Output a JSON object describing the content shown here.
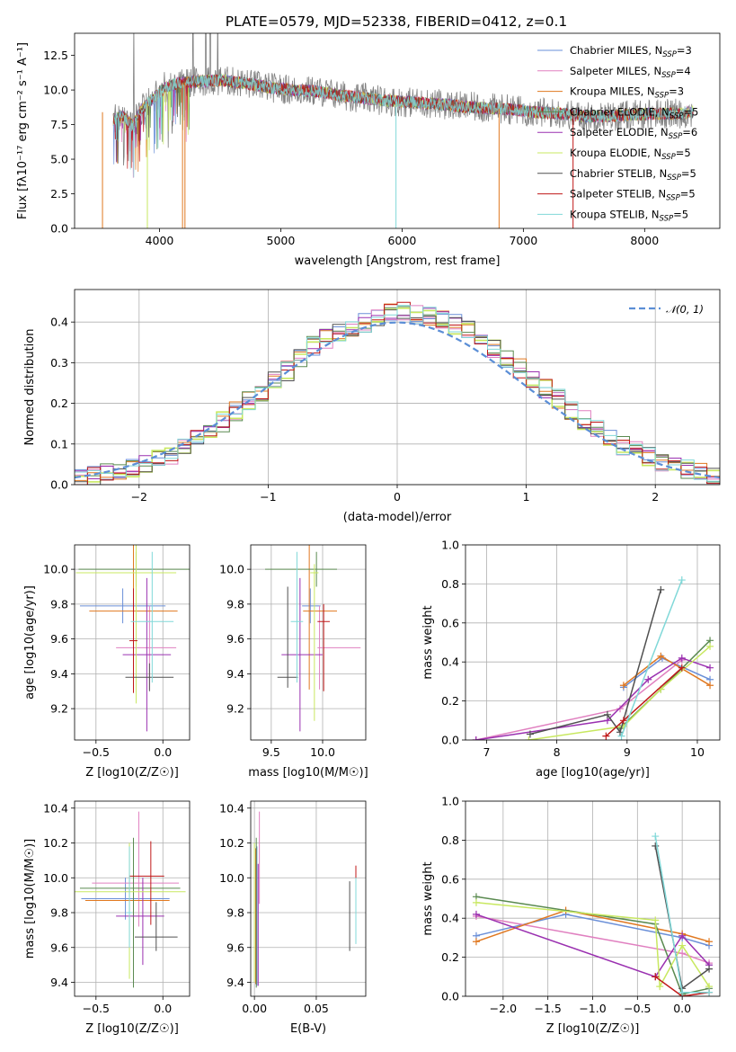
{
  "title": "PLATE=0579, MJD=52338, FIBERID=0412, z=0.1",
  "models": [
    {
      "name": "Chabrier MILES, N_SSP=3",
      "label_main": "Chabrier MILES, N",
      "label_sub": "SSP",
      "label_tail": "=3",
      "color": "#6a8fd8"
    },
    {
      "name": "Salpeter MILES, N_SSP=4",
      "label_main": "Salpeter MILES, N",
      "label_sub": "SSP",
      "label_tail": "=4",
      "color": "#e080c0"
    },
    {
      "name": "Kroupa MILES, N_SSP=3",
      "label_main": "Kroupa MILES, N",
      "label_sub": "SSP",
      "label_tail": "=3",
      "color": "#e07820"
    },
    {
      "name": "Chabrier ELODIE, N_SSP=5",
      "label_main": "Chabrier ELODIE, N",
      "label_sub": "SSP",
      "label_tail": "=5",
      "color": "#5a8a50"
    },
    {
      "name": "Salpeter ELODIE, N_SSP=6",
      "label_main": "Salpeter ELODIE, N",
      "label_sub": "SSP",
      "label_tail": "=6",
      "color": "#9a30b0"
    },
    {
      "name": "Kroupa ELODIE, N_SSP=5",
      "label_main": "Kroupa ELODIE, N",
      "label_sub": "SSP",
      "label_tail": "=5",
      "color": "#c8e860"
    },
    {
      "name": "Chabrier STELIB, N_SSP=5",
      "label_main": "Chabrier STELIB, N",
      "label_sub": "SSP",
      "label_tail": "=5",
      "color": "#505050"
    },
    {
      "name": "Salpeter STELIB, N_SSP=5",
      "label_main": "Salpeter STELIB, N",
      "label_sub": "SSP",
      "label_tail": "=5",
      "color": "#c01818"
    },
    {
      "name": "Kroupa STELIB, N_SSP=5",
      "label_main": "Kroupa STELIB, N",
      "label_sub": "SSP",
      "label_tail": "=5",
      "color": "#80d8d8"
    }
  ],
  "data_spectrum_color": "#808080",
  "chart_data": [
    {
      "id": "spectrum",
      "type": "line",
      "xlabel": "wavelength [Angstrom, rest frame]",
      "ylabel": "Flux [fλ10⁻¹⁷ erg cm⁻² s⁻¹ A⁻¹]",
      "xlim": [
        3300,
        8620
      ],
      "ylim": [
        0,
        14.1
      ],
      "xticks": [
        4000,
        5000,
        6000,
        7000,
        8000
      ],
      "yticks": [
        0.0,
        2.5,
        5.0,
        7.5,
        10.0,
        12.5
      ],
      "continuum": {
        "x": [
          3620,
          3700,
          3780,
          3850,
          3950,
          4050,
          4150,
          4300,
          4500,
          4700,
          4900,
          5100,
          5300,
          5500,
          5700,
          5900,
          6100,
          6300,
          6500,
          6700,
          6900,
          7100,
          7300,
          7500,
          7700,
          7900,
          8100,
          8300,
          8400
        ],
        "y": [
          7.9,
          8.1,
          7.4,
          8.6,
          9.4,
          10.2,
          10.5,
          10.6,
          10.7,
          10.5,
          10.2,
          10.0,
          9.9,
          9.6,
          9.4,
          9.2,
          9.1,
          9.0,
          8.8,
          8.7,
          8.6,
          8.4,
          8.3,
          8.1,
          8.1,
          8.2,
          8.3,
          8.3,
          8.4
        ]
      },
      "grid": false,
      "legend_position": "upper right"
    },
    {
      "id": "residuals",
      "type": "histogram",
      "xlabel": "(data-model)/error",
      "ylabel": "Normed distribution",
      "xlim": [
        -2.5,
        2.5
      ],
      "ylim": [
        0,
        0.48
      ],
      "xticks": [
        -2,
        -1,
        0,
        1,
        2
      ],
      "yticks": [
        0.0,
        0.1,
        0.2,
        0.3,
        0.4
      ],
      "bin_edges": [
        -2.5,
        -2.4,
        -2.3,
        -2.2,
        -2.1,
        -2.0,
        -1.9,
        -1.8,
        -1.7,
        -1.6,
        -1.5,
        -1.4,
        -1.3,
        -1.2,
        -1.1,
        -1.0,
        -0.9,
        -0.8,
        -0.7,
        -0.6,
        -0.5,
        -0.4,
        -0.3,
        -0.2,
        -0.1,
        0.0,
        0.1,
        0.2,
        0.3,
        0.4,
        0.5,
        0.6,
        0.7,
        0.8,
        0.9,
        1.0,
        1.1,
        1.2,
        1.3,
        1.4,
        1.5,
        1.6,
        1.7,
        1.8,
        1.9,
        2.0,
        2.1,
        2.2,
        2.3,
        2.4,
        2.5
      ],
      "base_counts": [
        0.015,
        0.022,
        0.028,
        0.034,
        0.042,
        0.05,
        0.06,
        0.075,
        0.09,
        0.11,
        0.13,
        0.155,
        0.18,
        0.205,
        0.23,
        0.255,
        0.28,
        0.31,
        0.34,
        0.36,
        0.375,
        0.39,
        0.4,
        0.41,
        0.42,
        0.43,
        0.42,
        0.415,
        0.41,
        0.395,
        0.38,
        0.36,
        0.335,
        0.31,
        0.285,
        0.26,
        0.235,
        0.21,
        0.185,
        0.16,
        0.135,
        0.115,
        0.098,
        0.082,
        0.068,
        0.056,
        0.045,
        0.036,
        0.029,
        0.022
      ],
      "reference_curve": {
        "name": "𝒩(0, 1)",
        "mu": 0,
        "sigma": 1,
        "color": "#5b8ed6"
      },
      "grid": true,
      "legend_position": "upper right"
    },
    {
      "id": "age-vs-z",
      "type": "errorbar",
      "xlabel": "Z [log10(Z/Z☉)]",
      "ylabel": "age [log10(age/yr)]",
      "xlim": [
        -0.66,
        0.2
      ],
      "ylim": [
        9.02,
        10.14
      ],
      "xticks": [
        -0.5,
        0.0
      ],
      "yticks": [
        9.2,
        9.4,
        9.6,
        9.8,
        10.0
      ],
      "points": [
        {
          "model": 0,
          "x": -0.3,
          "xerr": [
            0.32,
            0.32
          ],
          "y": 9.79,
          "yerr": [
            0.1,
            0.1
          ]
        },
        {
          "model": 1,
          "x": -0.1,
          "xerr": [
            0.25,
            0.2
          ],
          "y": 9.55,
          "yerr": [
            0.24,
            0.24
          ]
        },
        {
          "model": 2,
          "x": -0.22,
          "xerr": [
            0.33,
            0.33
          ],
          "y": 9.76,
          "yerr": [
            0.45,
            0.45
          ]
        },
        {
          "model": 3,
          "x": -0.2,
          "xerr": [
            0.43,
            0.43
          ],
          "y": 10.0,
          "yerr": [
            0.1,
            0.1
          ]
        },
        {
          "model": 4,
          "x": -0.12,
          "xerr": [
            0.18,
            0.18
          ],
          "y": 9.51,
          "yerr": [
            0.44,
            0.44
          ]
        },
        {
          "model": 5,
          "x": -0.2,
          "xerr": [
            0.45,
            0.3
          ],
          "y": 9.98,
          "yerr": [
            0.75,
            0.25
          ]
        },
        {
          "model": 6,
          "x": -0.1,
          "xerr": [
            0.18,
            0.18
          ],
          "y": 9.38,
          "yerr": [
            0.08,
            0.08
          ]
        },
        {
          "model": 7,
          "x": -0.22,
          "xerr": [
            0.03,
            0.03
          ],
          "y": 9.59,
          "yerr": [
            0.3,
            0.3
          ]
        },
        {
          "model": 8,
          "x": -0.08,
          "xerr": [
            0.16,
            0.16
          ],
          "y": 9.7,
          "yerr": [
            0.35,
            0.4
          ]
        }
      ],
      "grid": true
    },
    {
      "id": "age-vs-mass",
      "type": "errorbar",
      "xlabel": "mass [log10(M/M☉)]",
      "ylabel": "",
      "xlim": [
        9.3,
        10.42
      ],
      "ylim": [
        9.02,
        10.14
      ],
      "xticks": [
        9.5,
        10.0
      ],
      "yticks": [
        9.2,
        9.4,
        9.6,
        9.8,
        10.0
      ],
      "points": [
        {
          "model": 0,
          "x": 9.88,
          "xerr": [
            0.08,
            0.1
          ],
          "y": 9.79,
          "yerr": [
            0.1,
            0.1
          ]
        },
        {
          "model": 1,
          "x": 9.97,
          "xerr": [
            0.02,
            0.4
          ],
          "y": 9.55,
          "yerr": [
            0.24,
            0.24
          ]
        },
        {
          "model": 2,
          "x": 9.87,
          "xerr": [
            0.06,
            0.27
          ],
          "y": 9.76,
          "yerr": [
            0.45,
            0.45
          ]
        },
        {
          "model": 3,
          "x": 9.94,
          "xerr": [
            0.5,
            0.2
          ],
          "y": 10.0,
          "yerr": [
            0.1,
            0.1
          ]
        },
        {
          "model": 4,
          "x": 9.78,
          "xerr": [
            0.18,
            0.22
          ],
          "y": 9.51,
          "yerr": [
            0.44,
            0.44
          ]
        },
        {
          "model": 5,
          "x": 9.92,
          "xerr": [
            0.04,
            0.04
          ],
          "y": 9.98,
          "yerr": [
            0.85,
            0.05
          ]
        },
        {
          "model": 6,
          "x": 9.66,
          "xerr": [
            0.1,
            0.1
          ],
          "y": 9.38,
          "yerr": [
            0.06,
            0.52
          ]
        },
        {
          "model": 7,
          "x": 10.01,
          "xerr": [
            0.06,
            0.06
          ],
          "y": 9.7,
          "yerr": [
            0.4,
            0.1
          ]
        },
        {
          "model": 8,
          "x": 9.75,
          "xerr": [
            0.06,
            0.06
          ],
          "y": 9.7,
          "yerr": [
            0.35,
            0.4
          ]
        }
      ],
      "grid": true
    },
    {
      "id": "mass-weight-vs-age",
      "type": "line",
      "xlabel": "age [log10(age/yr)]",
      "ylabel": "mass weight",
      "xlim": [
        6.7,
        10.32
      ],
      "ylim": [
        0,
        1.0
      ],
      "xticks": [
        7,
        8,
        9,
        10
      ],
      "yticks": [
        0.0,
        0.2,
        0.4,
        0.6,
        0.8,
        1.0
      ],
      "series": [
        {
          "model": 0,
          "x": [
            8.95,
            9.5,
            10.18
          ],
          "y": [
            0.27,
            0.42,
            0.31
          ]
        },
        {
          "model": 1,
          "x": [
            6.85,
            8.9,
            9.78
          ],
          "y": [
            0.0,
            0.16,
            0.41
          ]
        },
        {
          "model": 2,
          "x": [
            8.95,
            9.48,
            10.18
          ],
          "y": [
            0.28,
            0.43,
            0.28
          ]
        },
        {
          "model": 3,
          "x": [
            8.9,
            9.48,
            10.18
          ],
          "y": [
            0.06,
            0.26,
            0.51
          ]
        },
        {
          "model": 4,
          "x": [
            6.85,
            8.72,
            9.3,
            9.78,
            10.18
          ],
          "y": [
            0.0,
            0.1,
            0.31,
            0.42,
            0.37
          ]
        },
        {
          "model": 5,
          "x": [
            7.6,
            8.95,
            9.48,
            10.18
          ],
          "y": [
            0.0,
            0.07,
            0.26,
            0.48
          ]
        },
        {
          "model": 6,
          "x": [
            7.62,
            8.72,
            8.9,
            9.48
          ],
          "y": [
            0.03,
            0.13,
            0.04,
            0.77
          ]
        },
        {
          "model": 7,
          "x": [
            8.7,
            8.95,
            9.78
          ],
          "y": [
            0.02,
            0.1,
            0.37
          ]
        },
        {
          "model": 8,
          "x": [
            8.92,
            9.78
          ],
          "y": [
            0.02,
            0.82
          ]
        }
      ],
      "grid": true
    },
    {
      "id": "mass-vs-z",
      "type": "errorbar",
      "xlabel": "Z [log10(Z/Z☉)]",
      "ylabel": "mass [log10(M/M☉)]",
      "xlim": [
        -0.66,
        0.2
      ],
      "ylim": [
        9.32,
        10.44
      ],
      "xticks": [
        -0.5,
        0.0
      ],
      "yticks": [
        9.4,
        9.6,
        9.8,
        10.0,
        10.2,
        10.4
      ],
      "points": [
        {
          "model": 0,
          "x": -0.28,
          "xerr": [
            0.33,
            0.33
          ],
          "y": 9.88,
          "yerr": [
            0.12,
            0.12
          ]
        },
        {
          "model": 1,
          "x": -0.18,
          "xerr": [
            0.35,
            0.3
          ],
          "y": 9.97,
          "yerr": [
            0.25,
            0.41
          ]
        },
        {
          "model": 2,
          "x": -0.25,
          "xerr": [
            0.33,
            0.3
          ],
          "y": 9.87,
          "yerr": [
            0.1,
            0.32
          ]
        },
        {
          "model": 3,
          "x": -0.22,
          "xerr": [
            0.4,
            0.35
          ],
          "y": 9.94,
          "yerr": [
            0.57,
            0.29
          ]
        },
        {
          "model": 4,
          "x": -0.15,
          "xerr": [
            0.2,
            0.16
          ],
          "y": 9.78,
          "yerr": [
            0.28,
            0.22
          ]
        },
        {
          "model": 5,
          "x": -0.25,
          "xerr": [
            0.42,
            0.42
          ],
          "y": 9.92,
          "yerr": [
            0.5,
            0.28
          ]
        },
        {
          "model": 6,
          "x": -0.05,
          "xerr": [
            0.16,
            0.16
          ],
          "y": 9.66,
          "yerr": [
            0.08,
            0.2
          ]
        },
        {
          "model": 7,
          "x": -0.09,
          "xerr": [
            0.16,
            0.1
          ],
          "y": 10.01,
          "yerr": [
            0.28,
            0.2
          ]
        },
        {
          "model": 8,
          "x": -0.25,
          "xerr": [
            0.02,
            0.02
          ],
          "y": 9.8,
          "yerr": [
            0.2,
            0.38
          ]
        }
      ],
      "grid": true
    },
    {
      "id": "mass-vs-ebv",
      "type": "errorbar",
      "xlabel": "E(B-V)",
      "ylabel": "",
      "xlim": [
        -0.003,
        0.09
      ],
      "ylim": [
        9.32,
        10.44
      ],
      "xticks": [
        0.0,
        0.05
      ],
      "yticks": [
        9.4,
        9.6,
        9.8,
        10.0,
        10.2,
        10.4
      ],
      "points": [
        {
          "model": 0,
          "x": 0.002,
          "xerr": [
            0,
            0
          ],
          "y": 9.88,
          "yerr": [
            0.5,
            0.3
          ]
        },
        {
          "model": 1,
          "x": 0.004,
          "xerr": [
            0,
            0
          ],
          "y": 10.1,
          "yerr": [
            0.25,
            0.28
          ]
        },
        {
          "model": 2,
          "x": 0.001,
          "xerr": [
            0,
            0
          ],
          "y": 9.87,
          "yerr": [
            0.48,
            0.3
          ]
        },
        {
          "model": 3,
          "x": 0.0015,
          "xerr": [
            0,
            0
          ],
          "y": 9.94,
          "yerr": [
            0.57,
            0.29
          ]
        },
        {
          "model": 4,
          "x": 0.003,
          "xerr": [
            0,
            0
          ],
          "y": 9.78,
          "yerr": [
            0.4,
            0.3
          ]
        },
        {
          "model": 5,
          "x": 0.0,
          "xerr": [
            0,
            0
          ],
          "y": 9.9,
          "yerr": [
            0.5,
            0.3
          ]
        },
        {
          "model": 6,
          "x": 0.077,
          "xerr": [
            0,
            0
          ],
          "y": 9.76,
          "yerr": [
            0.18,
            0.22
          ]
        },
        {
          "model": 7,
          "x": 0.082,
          "xerr": [
            0,
            0
          ],
          "y": 10.0,
          "yerr": [
            0.04,
            0.07
          ]
        },
        {
          "model": 8,
          "x": 0.082,
          "xerr": [
            0,
            0
          ],
          "y": 9.8,
          "yerr": [
            0.18,
            0.2
          ]
        }
      ],
      "grid": true
    },
    {
      "id": "mass-weight-vs-z",
      "type": "line",
      "xlabel": "Z [log10(Z/Z☉)]",
      "ylabel": "mass weight",
      "xlim": [
        -2.42,
        0.42
      ],
      "ylim": [
        0,
        1.0
      ],
      "xticks": [
        -2.0,
        -1.5,
        -1.0,
        -0.5,
        0.0
      ],
      "yticks": [
        0.0,
        0.2,
        0.4,
        0.6,
        0.8,
        1.0
      ],
      "series": [
        {
          "model": 0,
          "x": [
            -2.3,
            -1.3,
            0.0,
            0.3
          ],
          "y": [
            0.31,
            0.42,
            0.3,
            0.26
          ]
        },
        {
          "model": 1,
          "x": [
            -2.3,
            0.0,
            0.3
          ],
          "y": [
            0.41,
            0.22,
            0.17
          ]
        },
        {
          "model": 2,
          "x": [
            -2.3,
            -1.3,
            0.0,
            0.3
          ],
          "y": [
            0.28,
            0.44,
            0.32,
            0.28
          ]
        },
        {
          "model": 3,
          "x": [
            -2.3,
            -0.3,
            0.0,
            0.3
          ],
          "y": [
            0.51,
            0.37,
            0.01,
            0.04
          ]
        },
        {
          "model": 4,
          "x": [
            -2.3,
            -0.3,
            0.0,
            0.3
          ],
          "y": [
            0.42,
            0.1,
            0.31,
            0.16
          ]
        },
        {
          "model": 5,
          "x": [
            -2.3,
            -0.3,
            -0.25,
            0.0,
            0.3
          ],
          "y": [
            0.48,
            0.39,
            0.05,
            0.26,
            0.05
          ]
        },
        {
          "model": 6,
          "x": [
            -0.3,
            0.0,
            0.3
          ],
          "y": [
            0.77,
            0.04,
            0.14
          ]
        },
        {
          "model": 7,
          "x": [
            -0.3,
            0.0,
            0.3
          ],
          "y": [
            0.1,
            0.0,
            0.02
          ]
        },
        {
          "model": 8,
          "x": [
            -0.3,
            0.0,
            0.3
          ],
          "y": [
            0.82,
            0.02,
            0.02
          ]
        }
      ],
      "grid": true
    }
  ]
}
